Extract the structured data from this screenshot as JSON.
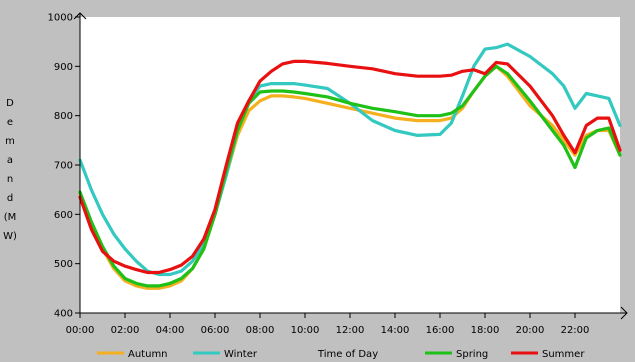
{
  "chart_data": {
    "type": "line",
    "title": "",
    "xlabel": "Time of Day",
    "ylabel": "Demand (MW)",
    "ylabel_chars": [
      "D",
      "e",
      "m",
      "a",
      "n",
      "d",
      "(M",
      "W)"
    ],
    "ylim": [
      400,
      1000
    ],
    "yticks": [
      "400",
      "500",
      "600",
      "700",
      "800",
      "900",
      "1000"
    ],
    "x_range": [
      0,
      24
    ],
    "xticks": [
      "00:00",
      "02:00",
      "04:00",
      "06:00",
      "08:00",
      "10:00",
      "12:00",
      "14:00",
      "16:00",
      "18:00",
      "20:00",
      "22:00"
    ],
    "grid": false,
    "legend_position": "bottom",
    "background": "#c0c0c0",
    "series": [
      {
        "name": "Autumn",
        "color": "#f5b020",
        "x": [
          0,
          0.5,
          1,
          1.5,
          2,
          2.5,
          3,
          3.5,
          4,
          4.5,
          5,
          5.5,
          6,
          6.5,
          7,
          7.5,
          8,
          8.5,
          9,
          9.5,
          10,
          11,
          12,
          13,
          14,
          15,
          16,
          16.5,
          17,
          17.5,
          18,
          18.5,
          19,
          20,
          21,
          21.5,
          22,
          22.5,
          23,
          23.5,
          24
        ],
        "y": [
          640,
          580,
          530,
          490,
          465,
          455,
          450,
          450,
          455,
          465,
          490,
          530,
          600,
          680,
          760,
          810,
          830,
          840,
          840,
          838,
          835,
          825,
          815,
          805,
          795,
          790,
          790,
          795,
          815,
          850,
          880,
          900,
          880,
          820,
          780,
          750,
          720,
          760,
          770,
          770,
          720
        ]
      },
      {
        "name": "Winter",
        "color": "#33c8c0",
        "x": [
          0,
          0.5,
          1,
          1.5,
          2,
          2.5,
          3,
          3.5,
          4,
          4.5,
          5,
          5.5,
          6,
          6.5,
          7,
          7.5,
          8,
          8.5,
          9,
          9.5,
          10,
          11,
          12,
          13,
          14,
          15,
          16,
          16.5,
          17,
          17.5,
          18,
          18.5,
          19,
          20,
          21,
          21.5,
          22,
          22.5,
          23,
          23.5,
          24
        ],
        "y": [
          710,
          650,
          600,
          560,
          530,
          505,
          485,
          478,
          478,
          485,
          505,
          540,
          600,
          680,
          770,
          830,
          860,
          865,
          865,
          865,
          862,
          855,
          825,
          790,
          770,
          760,
          762,
          785,
          840,
          900,
          935,
          938,
          945,
          920,
          885,
          860,
          815,
          845,
          840,
          835,
          780
        ]
      },
      {
        "name": "Spring",
        "color": "#1fc018",
        "x": [
          0,
          0.5,
          1,
          1.5,
          2,
          2.5,
          3,
          3.5,
          4,
          4.5,
          5,
          5.5,
          6,
          6.5,
          7,
          7.5,
          8,
          8.5,
          9,
          9.5,
          10,
          11,
          12,
          13,
          14,
          15,
          16,
          16.5,
          17,
          17.5,
          18,
          18.5,
          19,
          20,
          21,
          21.5,
          22,
          22.5,
          23,
          23.5,
          24
        ],
        "y": [
          645,
          585,
          535,
          495,
          470,
          460,
          455,
          455,
          460,
          470,
          490,
          530,
          600,
          690,
          770,
          825,
          848,
          850,
          850,
          848,
          845,
          838,
          825,
          815,
          808,
          800,
          800,
          805,
          820,
          850,
          880,
          900,
          885,
          830,
          770,
          740,
          695,
          755,
          770,
          775,
          720
        ]
      },
      {
        "name": "Summer",
        "color": "#e81010",
        "x": [
          0,
          0.5,
          1,
          1.5,
          2,
          2.5,
          3,
          3.5,
          4,
          4.5,
          5,
          5.5,
          6,
          6.5,
          7,
          7.5,
          8,
          8.5,
          9,
          9.5,
          10,
          11,
          12,
          13,
          14,
          15,
          16,
          16.5,
          17,
          17.5,
          18,
          18.5,
          19,
          20,
          21,
          21.5,
          22,
          22.5,
          23,
          23.5,
          24
        ],
        "y": [
          635,
          570,
          525,
          505,
          495,
          488,
          482,
          482,
          488,
          497,
          515,
          550,
          610,
          700,
          785,
          830,
          870,
          890,
          905,
          910,
          910,
          906,
          900,
          895,
          885,
          880,
          880,
          882,
          890,
          893,
          885,
          908,
          905,
          860,
          800,
          760,
          725,
          780,
          795,
          795,
          730
        ]
      }
    ]
  }
}
